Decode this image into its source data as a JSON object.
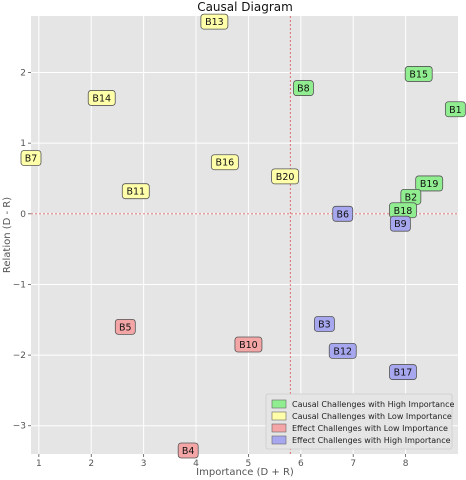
{
  "chart_data": {
    "type": "scatter",
    "title": "Causal Diagram",
    "xlabel": "Importance (D + R)",
    "ylabel": "Relation (D - R)",
    "xlim": [
      0.85,
      9.0
    ],
    "ylim": [
      -3.4,
      2.8
    ],
    "xticks": [
      1,
      2,
      3,
      4,
      5,
      6,
      7,
      8
    ],
    "yticks": [
      -3,
      -2,
      -1,
      0,
      1,
      2
    ],
    "grid": true,
    "reference_lines": {
      "x": 5.8,
      "y": 0
    },
    "legend_position": "bottom-right",
    "series": [
      {
        "name": "Causal Challenges with High Importance",
        "color": "#90ee90",
        "points": [
          {
            "label": "B15",
            "x": 8.25,
            "y": 1.98
          },
          {
            "label": "B8",
            "x": 6.05,
            "y": 1.78
          },
          {
            "label": "B1",
            "x": 8.95,
            "y": 1.48
          },
          {
            "label": "B19",
            "x": 8.45,
            "y": 0.43
          },
          {
            "label": "B2",
            "x": 8.1,
            "y": 0.24
          },
          {
            "label": "B18",
            "x": 7.95,
            "y": 0.05
          }
        ]
      },
      {
        "name": "Causal Challenges with Low Importance",
        "color": "#ffffaa",
        "points": [
          {
            "label": "B13",
            "x": 4.35,
            "y": 2.72
          },
          {
            "label": "B14",
            "x": 2.2,
            "y": 1.64
          },
          {
            "label": "B7",
            "x": 0.85,
            "y": 0.79
          },
          {
            "label": "B16",
            "x": 4.55,
            "y": 0.73
          },
          {
            "label": "B11",
            "x": 2.85,
            "y": 0.32
          },
          {
            "label": "B20",
            "x": 5.7,
            "y": 0.53
          }
        ]
      },
      {
        "name": "Effect Challenges with Low Importance",
        "color": "#f4a6a6",
        "points": [
          {
            "label": "B5",
            "x": 2.65,
            "y": -1.6
          },
          {
            "label": "B10",
            "x": 5.0,
            "y": -1.85
          },
          {
            "label": "B4",
            "x": 3.85,
            "y": -3.35
          }
        ]
      },
      {
        "name": "Effect Challenges with High Importance",
        "color": "#a7a7f0",
        "points": [
          {
            "label": "B6",
            "x": 6.8,
            "y": 0.0
          },
          {
            "label": "B9",
            "x": 7.9,
            "y": -0.14
          },
          {
            "label": "B3",
            "x": 6.45,
            "y": -1.56
          },
          {
            "label": "B12",
            "x": 6.8,
            "y": -1.94
          },
          {
            "label": "B17",
            "x": 7.95,
            "y": -2.24
          }
        ]
      }
    ]
  }
}
